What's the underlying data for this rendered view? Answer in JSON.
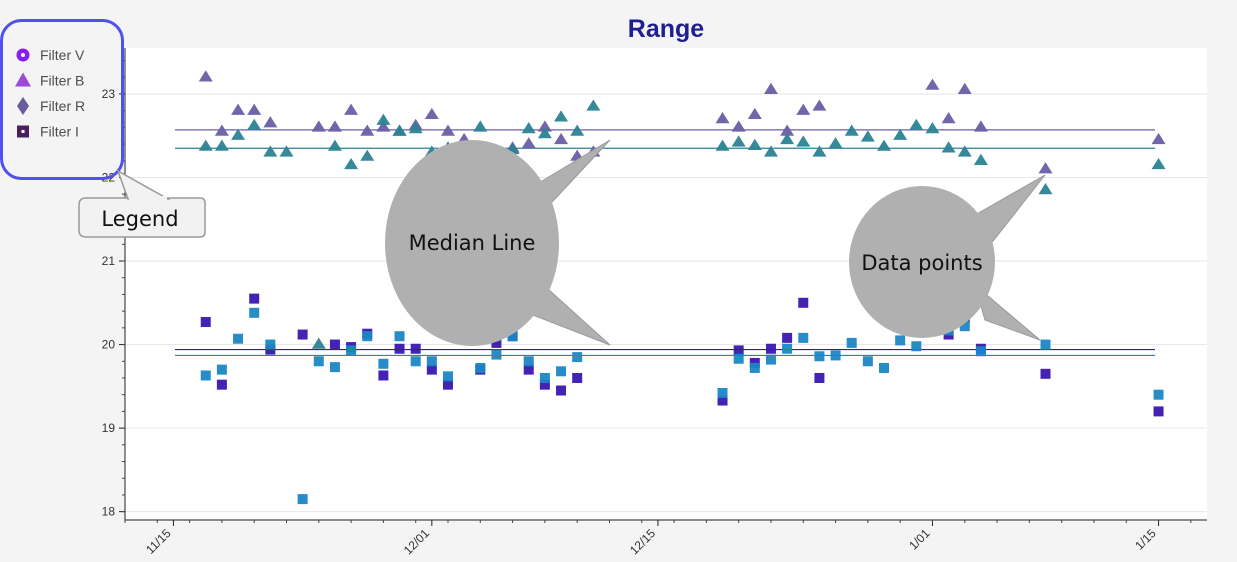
{
  "chart_data": {
    "type": "scatter",
    "title": "Range",
    "xlabel": "",
    "ylabel": "",
    "x_is_date": true,
    "xlim": [
      "2019-11-12",
      "2020-01-18"
    ],
    "ylim": [
      17.9,
      23.55
    ],
    "y_ticks": [
      18,
      19,
      20,
      21,
      22,
      23
    ],
    "x_ticks": [
      {
        "date": "2019-11-15",
        "label": "11/15"
      },
      {
        "date": "2019-12-01",
        "label": "12/01"
      },
      {
        "date": "2019-12-15",
        "label": "12/15"
      },
      {
        "date": "2020-01-01",
        "label": "1/01"
      },
      {
        "date": "2020-01-15",
        "label": "1/15"
      }
    ],
    "grid": true,
    "legend_position": "top-left",
    "legend": [
      {
        "label": "Filter V",
        "marker": "circle",
        "color": "#8a1cf0"
      },
      {
        "label": "Filter B",
        "marker": "triangle",
        "color": "#9a4ad6"
      },
      {
        "label": "Filter R",
        "marker": "diamond",
        "color": "#6b5b9a"
      },
      {
        "label": "Filter I",
        "marker": "square",
        "color": "#4a1f5e"
      }
    ],
    "series": [
      {
        "marker": "triangle",
        "color": "#6a5ea6",
        "median": 22.57,
        "points": [
          [
            "2019-11-17",
            23.2
          ],
          [
            "2019-11-18",
            22.55
          ],
          [
            "2019-11-19",
            22.8
          ],
          [
            "2019-11-20",
            22.8
          ],
          [
            "2019-11-21",
            22.65
          ],
          [
            "2019-11-24",
            22.6
          ],
          [
            "2019-11-25",
            22.6
          ],
          [
            "2019-11-26",
            22.8
          ],
          [
            "2019-11-27",
            22.55
          ],
          [
            "2019-11-28",
            22.6
          ],
          [
            "2019-11-29",
            22.55
          ],
          [
            "2019-11-30",
            22.62
          ],
          [
            "2019-12-01",
            22.75
          ],
          [
            "2019-12-02",
            22.55
          ],
          [
            "2019-12-03",
            22.45
          ],
          [
            "2019-12-05",
            22.3
          ],
          [
            "2019-12-06",
            22.35
          ],
          [
            "2019-12-07",
            22.4
          ],
          [
            "2019-12-08",
            22.6
          ],
          [
            "2019-12-09",
            22.45
          ],
          [
            "2019-12-10",
            22.25
          ],
          [
            "2019-12-11",
            22.3
          ],
          [
            "2019-12-19",
            22.7
          ],
          [
            "2019-12-20",
            22.6
          ],
          [
            "2019-12-21",
            22.75
          ],
          [
            "2019-12-22",
            23.05
          ],
          [
            "2019-12-23",
            22.55
          ],
          [
            "2019-12-24",
            22.8
          ],
          [
            "2019-12-25",
            22.85
          ],
          [
            "2020-01-01",
            23.1
          ],
          [
            "2020-01-02",
            22.7
          ],
          [
            "2020-01-03",
            23.05
          ],
          [
            "2020-01-04",
            22.6
          ],
          [
            "2020-01-08",
            22.1
          ],
          [
            "2020-01-15",
            22.45
          ]
        ]
      },
      {
        "marker": "triangle",
        "color": "#2a8394",
        "median": 22.35,
        "points": [
          [
            "2019-11-17",
            22.37
          ],
          [
            "2019-11-18",
            22.37
          ],
          [
            "2019-11-19",
            22.5
          ],
          [
            "2019-11-20",
            22.62
          ],
          [
            "2019-11-21",
            22.3
          ],
          [
            "2019-11-22",
            22.3
          ],
          [
            "2019-11-24",
            20.0
          ],
          [
            "2019-11-25",
            22.37
          ],
          [
            "2019-11-26",
            22.15
          ],
          [
            "2019-11-27",
            22.25
          ],
          [
            "2019-11-28",
            22.68
          ],
          [
            "2019-11-29",
            22.55
          ],
          [
            "2019-11-30",
            22.58
          ],
          [
            "2019-12-01",
            22.3
          ],
          [
            "2019-12-02",
            22.35
          ],
          [
            "2019-12-03",
            22.3
          ],
          [
            "2019-12-04",
            22.6
          ],
          [
            "2019-12-05",
            22.25
          ],
          [
            "2019-12-06",
            22.33
          ],
          [
            "2019-12-07",
            22.58
          ],
          [
            "2019-12-08",
            22.52
          ],
          [
            "2019-12-09",
            22.72
          ],
          [
            "2019-12-10",
            22.55
          ],
          [
            "2019-12-11",
            22.85
          ],
          [
            "2019-12-19",
            22.37
          ],
          [
            "2019-12-20",
            22.42
          ],
          [
            "2019-12-21",
            22.38
          ],
          [
            "2019-12-22",
            22.3
          ],
          [
            "2019-12-23",
            22.45
          ],
          [
            "2019-12-24",
            22.42
          ],
          [
            "2019-12-25",
            22.3
          ],
          [
            "2019-12-26",
            22.4
          ],
          [
            "2019-12-27",
            22.55
          ],
          [
            "2019-12-28",
            22.48
          ],
          [
            "2019-12-29",
            22.37
          ],
          [
            "2019-12-30",
            22.5
          ],
          [
            "2019-12-31",
            22.62
          ],
          [
            "2020-01-01",
            22.58
          ],
          [
            "2020-01-02",
            22.35
          ],
          [
            "2020-01-03",
            22.3
          ],
          [
            "2020-01-04",
            22.2
          ],
          [
            "2020-01-08",
            21.85
          ],
          [
            "2020-01-15",
            22.15
          ]
        ]
      },
      {
        "marker": "square",
        "color": "#3a16b0",
        "median": 19.94,
        "points": [
          [
            "2019-11-17",
            20.27
          ],
          [
            "2019-11-18",
            19.52
          ],
          [
            "2019-11-20",
            20.55
          ],
          [
            "2019-11-21",
            19.94
          ],
          [
            "2019-11-23",
            20.12
          ],
          [
            "2019-11-25",
            20.0
          ],
          [
            "2019-11-26",
            19.97
          ],
          [
            "2019-11-27",
            20.13
          ],
          [
            "2019-11-28",
            19.63
          ],
          [
            "2019-11-29",
            19.95
          ],
          [
            "2019-11-30",
            19.95
          ],
          [
            "2019-12-01",
            19.7
          ],
          [
            "2019-12-02",
            19.52
          ],
          [
            "2019-12-03",
            20.3
          ],
          [
            "2019-12-04",
            19.7
          ],
          [
            "2019-12-05",
            20.02
          ],
          [
            "2019-12-06",
            20.1
          ],
          [
            "2019-12-07",
            19.7
          ],
          [
            "2019-12-08",
            19.52
          ],
          [
            "2019-12-09",
            19.45
          ],
          [
            "2019-12-10",
            19.6
          ],
          [
            "2019-12-19",
            19.33
          ],
          [
            "2019-12-20",
            19.93
          ],
          [
            "2019-12-21",
            19.78
          ],
          [
            "2019-12-22",
            19.95
          ],
          [
            "2019-12-23",
            20.08
          ],
          [
            "2019-12-24",
            20.5
          ],
          [
            "2019-12-25",
            19.6
          ],
          [
            "2020-01-01",
            20.68
          ],
          [
            "2020-01-02",
            20.12
          ],
          [
            "2020-01-03",
            20.32
          ],
          [
            "2020-01-04",
            19.95
          ],
          [
            "2020-01-08",
            19.65
          ],
          [
            "2020-01-15",
            19.2
          ]
        ]
      },
      {
        "marker": "square",
        "color": "#1a87c5",
        "median": 19.87,
        "points": [
          [
            "2019-11-17",
            19.63
          ],
          [
            "2019-11-18",
            19.7
          ],
          [
            "2019-11-19",
            20.07
          ],
          [
            "2019-11-20",
            20.38
          ],
          [
            "2019-11-21",
            20.0
          ],
          [
            "2019-11-23",
            18.15
          ],
          [
            "2019-11-24",
            19.8
          ],
          [
            "2019-11-25",
            19.73
          ],
          [
            "2019-11-26",
            19.93
          ],
          [
            "2019-11-27",
            20.1
          ],
          [
            "2019-11-28",
            19.77
          ],
          [
            "2019-11-29",
            20.1
          ],
          [
            "2019-11-30",
            19.8
          ],
          [
            "2019-12-01",
            19.8
          ],
          [
            "2019-12-02",
            19.62
          ],
          [
            "2019-12-03",
            20.3
          ],
          [
            "2019-12-04",
            19.72
          ],
          [
            "2019-12-05",
            19.88
          ],
          [
            "2019-12-06",
            20.1
          ],
          [
            "2019-12-07",
            19.8
          ],
          [
            "2019-12-08",
            19.6
          ],
          [
            "2019-12-09",
            19.68
          ],
          [
            "2019-12-10",
            19.85
          ],
          [
            "2019-12-19",
            19.42
          ],
          [
            "2019-12-20",
            19.83
          ],
          [
            "2019-12-21",
            19.72
          ],
          [
            "2019-12-22",
            19.82
          ],
          [
            "2019-12-23",
            19.95
          ],
          [
            "2019-12-24",
            20.08
          ],
          [
            "2019-12-25",
            19.86
          ],
          [
            "2019-12-26",
            19.87
          ],
          [
            "2019-12-27",
            20.02
          ],
          [
            "2019-12-28",
            19.8
          ],
          [
            "2019-12-29",
            19.72
          ],
          [
            "2019-12-30",
            20.05
          ],
          [
            "2019-12-31",
            19.98
          ],
          [
            "2020-01-01",
            20.53
          ],
          [
            "2020-01-02",
            20.17
          ],
          [
            "2020-01-03",
            20.22
          ],
          [
            "2020-01-04",
            19.92
          ],
          [
            "2020-01-08",
            20.0
          ],
          [
            "2020-01-15",
            19.4
          ]
        ]
      }
    ],
    "annotations": [
      {
        "text": "Legend",
        "points_to": "legend"
      },
      {
        "text": "Median Line",
        "points_to": "median lines"
      },
      {
        "text": "Data points",
        "points_to": "data points"
      }
    ]
  }
}
